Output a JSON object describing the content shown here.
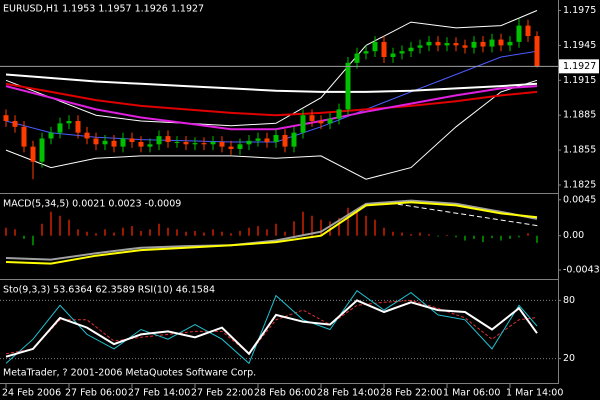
{
  "footer": "MetaTrader, ? 2001-2006 MetaQuotes Software Corp.",
  "chart_data": [
    {
      "type": "candlestick",
      "title": "EURUSD,H1  1.1953 1.1957 1.1926 1.1927",
      "up_color": "#00c000",
      "down_color": "#ff3c00",
      "open": [
        1.1885,
        1.188,
        1.1875,
        1.1858,
        1.1845,
        1.1865,
        1.187,
        1.1878,
        1.188,
        1.187,
        1.1865,
        1.186,
        1.1863,
        1.1858,
        1.1865,
        1.1862,
        1.1858,
        1.186,
        1.1867,
        1.1862,
        1.1862,
        1.186,
        1.1861,
        1.186,
        1.1862,
        1.1858,
        1.1856,
        1.186,
        1.1863,
        1.1865,
        1.1862,
        1.1868,
        1.1858,
        1.187,
        1.1885,
        1.188,
        1.1878,
        1.1882,
        1.189,
        1.193,
        1.1938,
        1.194,
        1.1948,
        1.1935,
        1.1938,
        1.194,
        1.1943,
        1.1945,
        1.1948,
        1.1945,
        1.1947,
        1.1945,
        1.1943,
        1.1948,
        1.1944,
        1.195,
        1.1945,
        1.1948,
        1.1962,
        1.1953
      ],
      "high": [
        1.189,
        1.1885,
        1.188,
        1.1863,
        1.187,
        1.1875,
        1.1883,
        1.1885,
        1.1885,
        1.1875,
        1.187,
        1.1868,
        1.1868,
        1.187,
        1.187,
        1.1867,
        1.1865,
        1.1872,
        1.1872,
        1.1867,
        1.1867,
        1.1866,
        1.1866,
        1.1867,
        1.1867,
        1.1863,
        1.1865,
        1.1868,
        1.187,
        1.187,
        1.1873,
        1.1873,
        1.1875,
        1.189,
        1.189,
        1.1885,
        1.1887,
        1.1895,
        1.1935,
        1.1943,
        1.1945,
        1.1953,
        1.1953,
        1.1943,
        1.1945,
        1.1948,
        1.195,
        1.1953,
        1.1953,
        1.1952,
        1.1952,
        1.195,
        1.1953,
        1.1953,
        1.1955,
        1.1955,
        1.1953,
        1.1968,
        1.1967,
        1.1957
      ],
      "low": [
        1.1875,
        1.187,
        1.1853,
        1.183,
        1.184,
        1.186,
        1.1865,
        1.1873,
        1.1865,
        1.186,
        1.1855,
        1.1855,
        1.1853,
        1.1853,
        1.1857,
        1.1853,
        1.1853,
        1.1855,
        1.1857,
        1.1857,
        1.1855,
        1.1855,
        1.1855,
        1.1855,
        1.1853,
        1.1851,
        1.1851,
        1.1855,
        1.1858,
        1.1857,
        1.1857,
        1.1853,
        1.1853,
        1.1865,
        1.1875,
        1.1873,
        1.1873,
        1.1877,
        1.1885,
        1.1925,
        1.1933,
        1.1935,
        1.193,
        1.193,
        1.1933,
        1.1935,
        1.1938,
        1.194,
        1.194,
        1.194,
        1.194,
        1.1938,
        1.1938,
        1.1939,
        1.1939,
        1.194,
        1.194,
        1.1943,
        1.1948,
        1.1926
      ],
      "close": [
        1.188,
        1.1875,
        1.1858,
        1.1845,
        1.1865,
        1.187,
        1.1878,
        1.188,
        1.187,
        1.1865,
        1.186,
        1.1863,
        1.1858,
        1.1865,
        1.1862,
        1.1858,
        1.186,
        1.1867,
        1.1862,
        1.1862,
        1.186,
        1.1861,
        1.186,
        1.1862,
        1.1858,
        1.1856,
        1.186,
        1.1863,
        1.1865,
        1.1862,
        1.1868,
        1.1858,
        1.187,
        1.1885,
        1.188,
        1.1878,
        1.1882,
        1.189,
        1.193,
        1.1938,
        1.194,
        1.1948,
        1.1935,
        1.1938,
        1.194,
        1.1943,
        1.1945,
        1.1948,
        1.1945,
        1.1947,
        1.1945,
        1.1943,
        1.1948,
        1.1944,
        1.195,
        1.1945,
        1.1948,
        1.1962,
        1.1953,
        1.1927
      ],
      "bollinger": {
        "color": "#ffffff",
        "middle_color": "#4a5cff",
        "x": [
          0,
          5,
          10,
          15,
          20,
          25,
          30,
          35,
          40,
          45,
          50,
          55,
          59
        ],
        "upper": [
          1.1915,
          1.19,
          1.1885,
          1.188,
          1.1878,
          1.1876,
          1.1878,
          1.19,
          1.1945,
          1.1965,
          1.196,
          1.1962,
          1.1975
        ],
        "middle": [
          1.188,
          1.187,
          1.1866,
          1.1864,
          1.1863,
          1.1862,
          1.1862,
          1.1875,
          1.189,
          1.1905,
          1.192,
          1.1935,
          1.194
        ],
        "lower": [
          1.1855,
          1.184,
          1.1848,
          1.185,
          1.185,
          1.185,
          1.1848,
          1.185,
          1.183,
          1.184,
          1.1875,
          1.1905,
          1.1915
        ]
      },
      "moving_averages": [
        {
          "color": "#ffffff",
          "x": [
            0,
            5,
            10,
            15,
            20,
            25,
            30,
            35,
            40,
            45,
            50,
            55,
            59
          ],
          "values": [
            1.192,
            1.1917,
            1.1914,
            1.1912,
            1.191,
            1.1908,
            1.1906,
            1.1905,
            1.1905,
            1.1906,
            1.1908,
            1.191,
            1.1912
          ]
        },
        {
          "color": "#e00000",
          "x": [
            0,
            5,
            10,
            15,
            20,
            25,
            30,
            35,
            40,
            45,
            50,
            55,
            59
          ],
          "values": [
            1.1912,
            1.1905,
            1.1898,
            1.1893,
            1.189,
            1.1887,
            1.1885,
            1.1887,
            1.189,
            1.1893,
            1.1897,
            1.1902,
            1.1905
          ]
        },
        {
          "color": "#e020e0",
          "x": [
            0,
            5,
            10,
            15,
            20,
            25,
            30,
            35,
            40,
            45,
            50,
            55,
            59
          ],
          "values": [
            1.191,
            1.19,
            1.189,
            1.1883,
            1.1878,
            1.1873,
            1.1873,
            1.188,
            1.1888,
            1.1895,
            1.1902,
            1.1908,
            1.191
          ]
        }
      ],
      "last_price": 1.1927,
      "ylim": [
        1.1819,
        1.1984
      ],
      "yticks": [
        1.1975,
        1.1945,
        1.1915,
        1.1885,
        1.1855,
        1.1825
      ]
    },
    {
      "type": "bar",
      "title": "MACD(5,34,5) 0.0021 0.0023 -0.0009",
      "pos_color": "#d02000",
      "neg_color": "#00a000",
      "values": [
        0.001,
        0.0008,
        -0.0004,
        -0.0012,
        0.0015,
        0.003,
        0.0025,
        0.002,
        0.0008,
        0.0005,
        0.0003,
        0.0008,
        0.0004,
        0.001,
        0.0012,
        0.0006,
        0.0008,
        0.0015,
        0.001,
        0.0008,
        0.0005,
        0.0006,
        0.0004,
        0.0008,
        0.0005,
        0.0003,
        0.0006,
        0.001,
        0.0012,
        0.0008,
        0.0015,
        0.0005,
        0.0018,
        0.003,
        0.0025,
        0.002,
        0.0018,
        0.0022,
        0.0035,
        0.003,
        0.0025,
        0.002,
        0.001,
        0.0005,
        0.0004,
        0.0002,
        0.0004,
        0.0002,
        -0.0001,
        0.0001,
        -0.0002,
        -0.0006,
        -0.0004,
        -0.0008,
        -0.0003,
        -0.0006,
        -0.0004,
        -0.0002,
        0.0003,
        -0.0009
      ],
      "series": [
        {
          "color": "#a0a0a0",
          "x": [
            0,
            5,
            10,
            15,
            20,
            25,
            30,
            35,
            40,
            45,
            50,
            55,
            59
          ],
          "values": [
            -0.0028,
            -0.003,
            -0.0022,
            -0.0015,
            -0.0013,
            -0.0012,
            -0.0006,
            0.0005,
            0.004,
            0.0044,
            0.004,
            0.003,
            0.0021
          ]
        },
        {
          "color": "#ffff00",
          "x": [
            0,
            5,
            10,
            15,
            20,
            25,
            30,
            35,
            40,
            45,
            50,
            55,
            59
          ],
          "values": [
            -0.0033,
            -0.0035,
            -0.0025,
            -0.0018,
            -0.0015,
            -0.0012,
            -0.0008,
            0.0,
            0.0038,
            0.0042,
            0.0038,
            0.0028,
            0.0023
          ]
        }
      ],
      "ylim": [
        -0.0053,
        0.0051
      ],
      "yticks": [
        0.0045,
        {
          "value": 0,
          "label": "0.00"
        },
        -0.0043
      ]
    },
    {
      "type": "line",
      "title": "Sto(9,3,3) 53.6364 62.3589  RSI(10) 46.1584",
      "series": [
        {
          "color": "#e03030",
          "dashed": true,
          "x": [
            0,
            3,
            6,
            9,
            12,
            15,
            18,
            21,
            24,
            27,
            30,
            33,
            36,
            39,
            42,
            45,
            48,
            51,
            54,
            57,
            59
          ],
          "values": [
            25,
            30,
            60,
            60,
            38,
            42,
            45,
            48,
            48,
            25,
            60,
            70,
            55,
            75,
            78,
            80,
            72,
            62,
            40,
            60,
            62.3589
          ]
        },
        {
          "color": "#20c0d0",
          "x": [
            0,
            3,
            6,
            9,
            12,
            15,
            18,
            21,
            24,
            27,
            30,
            33,
            36,
            39,
            42,
            45,
            48,
            51,
            54,
            57,
            59
          ],
          "values": [
            15,
            40,
            75,
            45,
            30,
            50,
            40,
            55,
            40,
            15,
            85,
            60,
            50,
            90,
            70,
            88,
            65,
            60,
            30,
            75,
            53.6364
          ]
        },
        {
          "color": "#ffffff",
          "thick": true,
          "x": [
            0,
            3,
            6,
            9,
            12,
            15,
            18,
            21,
            24,
            27,
            30,
            33,
            36,
            39,
            42,
            45,
            48,
            51,
            54,
            57,
            59
          ],
          "values": [
            22,
            30,
            62,
            52,
            35,
            45,
            48,
            42,
            52,
            25,
            65,
            58,
            55,
            80,
            68,
            78,
            70,
            68,
            50,
            72,
            46.1584
          ]
        }
      ],
      "ylim": [
        0,
        100
      ],
      "yticks": [
        80,
        20
      ],
      "grid": true,
      "xticks": [
        {
          "value": 0,
          "label": "24 Feb 2006"
        },
        {
          "value": 7,
          "label": "27 Feb 06:00"
        },
        {
          "value": 14,
          "label": "27 Feb 14:00"
        },
        {
          "value": 21,
          "label": "27 Feb 22:00"
        },
        {
          "value": 28,
          "label": "28 Feb 06:00"
        },
        {
          "value": 35,
          "label": "28 Feb 14:00"
        },
        {
          "value": 42,
          "label": "28 Feb 22:00"
        },
        {
          "value": 49,
          "label": "1 Mar 06:00"
        },
        {
          "value": 56,
          "label": "1 Mar 14:00"
        }
      ]
    }
  ]
}
